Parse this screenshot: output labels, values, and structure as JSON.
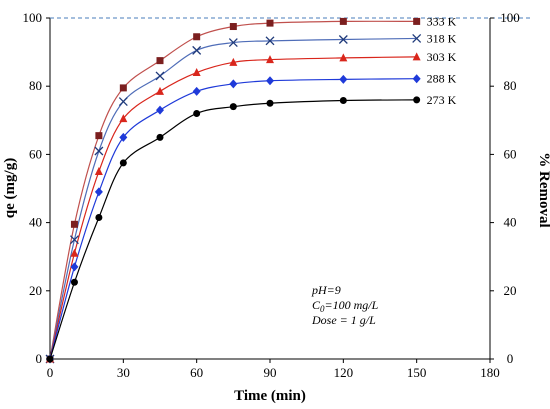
{
  "chart_data": {
    "type": "line",
    "title": "",
    "xlabel": "Time (min)",
    "ylabel": "qe (mg/g)",
    "y2label": "% Removal",
    "xlim": [
      0,
      180
    ],
    "ylim": [
      0,
      100
    ],
    "y2lim": [
      0,
      100
    ],
    "xticks": [
      0,
      30,
      60,
      90,
      120,
      150,
      180
    ],
    "yticks": [
      0,
      20,
      40,
      60,
      80,
      100
    ],
    "y2ticks": [
      0,
      20,
      40,
      60,
      80,
      100
    ],
    "reference_line": {
      "y": 100,
      "style": "dashed",
      "color": "#4a7ebb"
    },
    "grid": false,
    "x": [
      0,
      10,
      20,
      30,
      45,
      60,
      75,
      90,
      120,
      150
    ],
    "series": [
      {
        "name": "333 K",
        "marker": "square",
        "color": "#c0504d",
        "marker_color": "#7b1f1f",
        "values": [
          0,
          39.5,
          65.5,
          79.5,
          87.5,
          94.5,
          97.5,
          98.5,
          99,
          99
        ]
      },
      {
        "name": "318 K",
        "marker": "x",
        "color": "#4f6db8",
        "marker_color": "#1f3a7a",
        "values": [
          0,
          35,
          61,
          75.5,
          83,
          90.5,
          92.8,
          93.3,
          93.7,
          94
        ]
      },
      {
        "name": "303 K",
        "marker": "triangle",
        "color": "#d9261c",
        "marker_color": "#d9261c",
        "values": [
          0,
          31,
          55,
          70.5,
          78.5,
          84,
          87,
          87.8,
          88.3,
          88.6
        ]
      },
      {
        "name": "288 K",
        "marker": "diamond",
        "color": "#1f3ad9",
        "marker_color": "#1f3ad9",
        "values": [
          0,
          27,
          49,
          65,
          73,
          78.5,
          80.7,
          81.6,
          82,
          82.2
        ]
      },
      {
        "name": "273 K",
        "marker": "circle",
        "color": "#000000",
        "marker_color": "#000000",
        "values": [
          0,
          22.5,
          41.5,
          57.5,
          65,
          72,
          74,
          75,
          75.8,
          76
        ]
      }
    ],
    "annotation": {
      "line1": "pH=9",
      "line2_symbol": "C",
      "line2_sub": "0",
      "line2_rest": "=100 mg/L",
      "line3": "Dose = 1 g/L"
    }
  }
}
